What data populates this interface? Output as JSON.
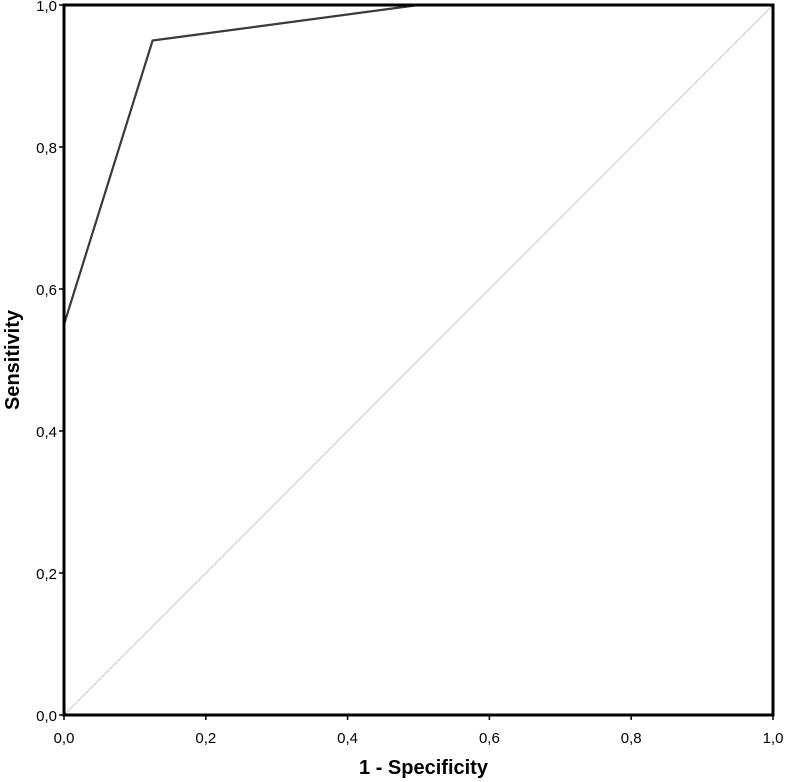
{
  "chart_data": {
    "type": "line",
    "title": "",
    "xlabel": "1 - Specificity",
    "ylabel": "Sensitivity",
    "xlim": [
      0,
      1
    ],
    "ylim": [
      0,
      1
    ],
    "x_ticks": [
      "0,0",
      "0,2",
      "0,4",
      "0,6",
      "0,8",
      "1,0"
    ],
    "y_ticks": [
      "0,0",
      "0,2",
      "0,4",
      "0,6",
      "0,8",
      "1,0"
    ],
    "grid": false,
    "legend": "none",
    "series": [
      {
        "x": [
          0,
          0,
          0.125,
          0.5,
          1.0
        ],
        "y": [
          0,
          0.55,
          0.95,
          1.0,
          1.0
        ],
        "color": "#3a3a3a"
      },
      {
        "x": [
          0,
          1
        ],
        "y": [
          0,
          1
        ],
        "color": "#c8c8c8"
      }
    ]
  }
}
